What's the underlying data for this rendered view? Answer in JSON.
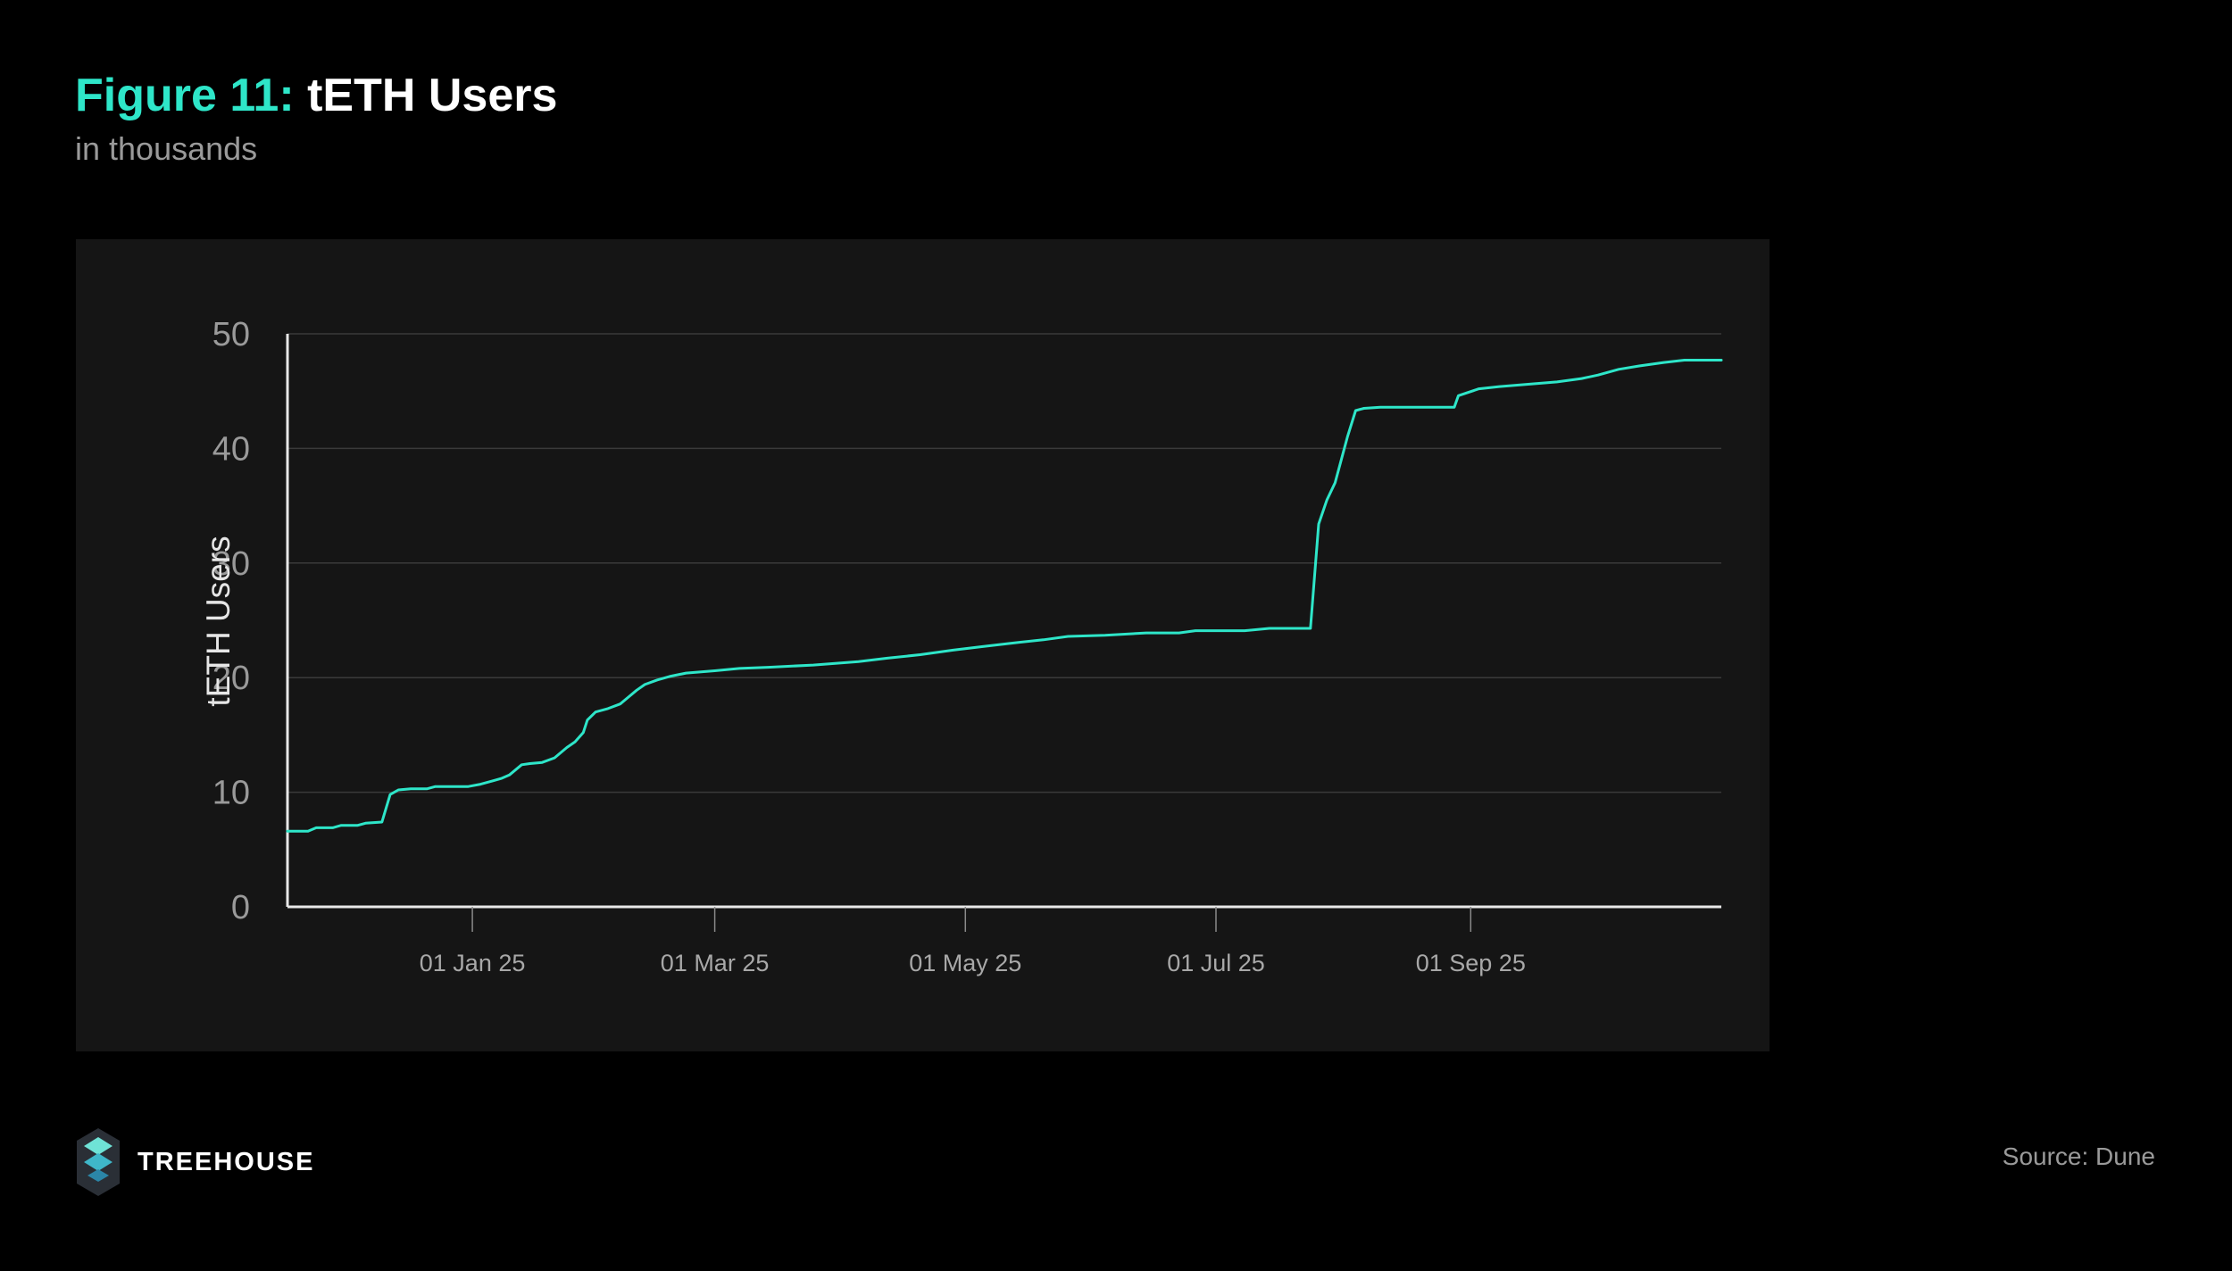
{
  "header": {
    "figure_label": "Figure 11:",
    "title": "tETH Users",
    "subtitle": "in thousands"
  },
  "footer": {
    "brand": "TREEHOUSE",
    "source": "Source: Dune"
  },
  "colors": {
    "accent": "#2ee6c9",
    "line": "#2ee6c9",
    "panel": "#151515",
    "background": "#000000"
  },
  "icons": [
    "treehouse-logo-icon"
  ],
  "chart_data": {
    "type": "line",
    "title": "tETH Users",
    "subtitle": "in thousands",
    "ylabel": "tETH Users",
    "xlabel": "",
    "ylim": [
      0,
      50
    ],
    "yticks": [
      0,
      10,
      20,
      30,
      40,
      50
    ],
    "xlim": [
      "2024-11-17",
      "2025-11-01"
    ],
    "xticks": [
      {
        "date": "2025-01-01",
        "label": "01 Jan 25"
      },
      {
        "date": "2025-03-01",
        "label": "01 Mar 25"
      },
      {
        "date": "2025-05-01",
        "label": "01 May 25"
      },
      {
        "date": "2025-07-01",
        "label": "01 Jul 25"
      },
      {
        "date": "2025-09-01",
        "label": "01 Sep 25"
      }
    ],
    "grid": true,
    "series": [
      {
        "points": [
          [
            "2024-11-17",
            6.6
          ],
          [
            "2024-11-22",
            6.6
          ],
          [
            "2024-11-24",
            6.9
          ],
          [
            "2024-11-28",
            6.9
          ],
          [
            "2024-11-30",
            7.1
          ],
          [
            "2024-12-04",
            7.1
          ],
          [
            "2024-12-06",
            7.3
          ],
          [
            "2024-12-10",
            7.4
          ],
          [
            "2024-12-12",
            9.8
          ],
          [
            "2024-12-14",
            10.2
          ],
          [
            "2024-12-17",
            10.3
          ],
          [
            "2024-12-21",
            10.3
          ],
          [
            "2024-12-23",
            10.5
          ],
          [
            "2024-12-31",
            10.5
          ],
          [
            "2025-01-03",
            10.7
          ],
          [
            "2025-01-06",
            11.0
          ],
          [
            "2025-01-08",
            11.2
          ],
          [
            "2025-01-10",
            11.5
          ],
          [
            "2025-01-13",
            12.4
          ],
          [
            "2025-01-15",
            12.5
          ],
          [
            "2025-01-18",
            12.6
          ],
          [
            "2025-01-21",
            13.0
          ],
          [
            "2025-01-24",
            13.9
          ],
          [
            "2025-01-26",
            14.4
          ],
          [
            "2025-01-28",
            15.2
          ],
          [
            "2025-01-29",
            16.3
          ],
          [
            "2025-01-31",
            17.0
          ],
          [
            "2025-02-03",
            17.3
          ],
          [
            "2025-02-06",
            17.7
          ],
          [
            "2025-02-08",
            18.3
          ],
          [
            "2025-02-10",
            18.9
          ],
          [
            "2025-02-12",
            19.4
          ],
          [
            "2025-02-15",
            19.8
          ],
          [
            "2025-02-18",
            20.1
          ],
          [
            "2025-02-22",
            20.4
          ],
          [
            "2025-03-01",
            20.6
          ],
          [
            "2025-03-07",
            20.8
          ],
          [
            "2025-03-14",
            20.9
          ],
          [
            "2025-03-25",
            21.1
          ],
          [
            "2025-04-05",
            21.4
          ],
          [
            "2025-04-12",
            21.7
          ],
          [
            "2025-04-20",
            22.0
          ],
          [
            "2025-04-28",
            22.4
          ],
          [
            "2025-05-05",
            22.7
          ],
          [
            "2025-05-12",
            23.0
          ],
          [
            "2025-05-20",
            23.3
          ],
          [
            "2025-05-26",
            23.6
          ],
          [
            "2025-06-04",
            23.7
          ],
          [
            "2025-06-14",
            23.9
          ],
          [
            "2025-06-22",
            23.9
          ],
          [
            "2025-06-26",
            24.1
          ],
          [
            "2025-07-08",
            24.1
          ],
          [
            "2025-07-14",
            24.3
          ],
          [
            "2025-07-24",
            24.3
          ],
          [
            "2025-07-26",
            33.4
          ],
          [
            "2025-07-28",
            35.5
          ],
          [
            "2025-07-30",
            37.0
          ],
          [
            "2025-08-02",
            41.0
          ],
          [
            "2025-08-04",
            43.3
          ],
          [
            "2025-08-06",
            43.5
          ],
          [
            "2025-08-10",
            43.6
          ],
          [
            "2025-08-28",
            43.6
          ],
          [
            "2025-08-29",
            44.6
          ],
          [
            "2025-09-03",
            45.2
          ],
          [
            "2025-09-08",
            45.4
          ],
          [
            "2025-09-15",
            45.6
          ],
          [
            "2025-09-22",
            45.8
          ],
          [
            "2025-09-28",
            46.1
          ],
          [
            "2025-10-02",
            46.4
          ],
          [
            "2025-10-07",
            46.9
          ],
          [
            "2025-10-12",
            47.2
          ],
          [
            "2025-10-18",
            47.5
          ],
          [
            "2025-10-23",
            47.7
          ],
          [
            "2025-11-01",
            47.7
          ]
        ]
      }
    ]
  }
}
